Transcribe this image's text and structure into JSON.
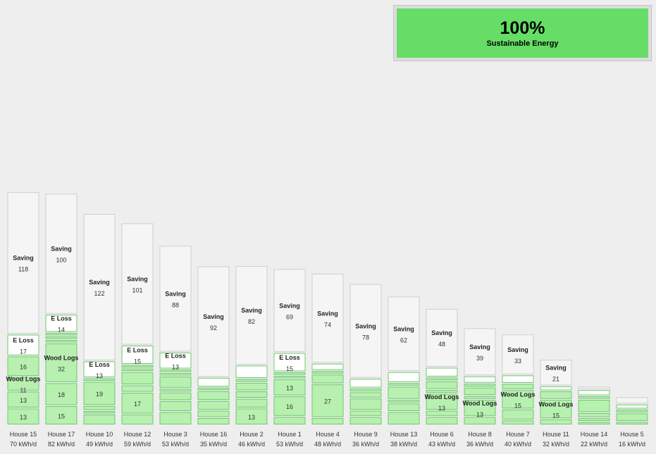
{
  "summary": {
    "value": "100%",
    "label": "Sustainable Energy",
    "color": "#66dd66"
  },
  "colors": {
    "saving": "#f5f5f5",
    "loss": "#ffffff",
    "source": "#b8f0b0",
    "source_border": "#6cc96c",
    "saving_border": "#cfcfcf",
    "background": "#eeeeee"
  },
  "chart_data": {
    "type": "bar",
    "stacked": true,
    "categories": [
      "House 15",
      "House 17",
      "House 10",
      "House 12",
      "House 3",
      "House 16",
      "House 2",
      "House 1",
      "House 4",
      "House 9",
      "House 13",
      "House 6",
      "House 8",
      "House 7",
      "House 11",
      "House 14",
      "House 5"
    ],
    "consumption_labels": [
      "70 kWh/d",
      "82 kWh/d",
      "49 kWh/d",
      "59 kWh/d",
      "53 kWh/d",
      "35 kWh/d",
      "46 kWh/d",
      "53 kWh/d",
      "48 kWh/d",
      "36 kWh/d",
      "38 kWh/d",
      "43 kWh/d",
      "36 kWh/d",
      "40 kWh/d",
      "32 kWh/d",
      "22 kWh/d",
      "16 kWh/d"
    ],
    "houses": [
      {
        "segments": [
          {
            "kind": "source",
            "value": 13
          },
          {
            "kind": "source",
            "value": 13
          },
          {
            "kind": "source",
            "label": "Wood Logs",
            "value": 11
          },
          {
            "kind": "source",
            "value": 16
          },
          {
            "kind": "loss",
            "label": "E Loss",
            "value": 17
          },
          {
            "kind": "saving",
            "label": "Saving",
            "value": 118
          }
        ]
      },
      {
        "segments": [
          {
            "kind": "source",
            "value": 15
          },
          {
            "kind": "source",
            "value": 18
          },
          {
            "kind": "source",
            "label": "Wood Logs",
            "value": 32
          },
          {
            "kind": "source",
            "value": 1
          },
          {
            "kind": "source",
            "value": 1
          },
          {
            "kind": "source",
            "value": 1
          },
          {
            "kind": "loss",
            "label": "E Loss",
            "value": 14
          },
          {
            "kind": "saving",
            "label": "Saving",
            "value": 100
          }
        ]
      },
      {
        "segments": [
          {
            "kind": "source",
            "value": 8
          },
          {
            "kind": "source",
            "value": 1
          },
          {
            "kind": "source",
            "value": 3
          },
          {
            "kind": "source",
            "value": 19
          },
          {
            "kind": "source",
            "value": 1
          },
          {
            "kind": "loss",
            "label": "E Loss",
            "value": 13
          },
          {
            "kind": "saving",
            "label": "Saving",
            "value": 122
          }
        ]
      },
      {
        "segments": [
          {
            "kind": "source",
            "value": 8
          },
          {
            "kind": "source",
            "value": 17
          },
          {
            "kind": "source",
            "value": 5
          },
          {
            "kind": "source",
            "value": 10
          },
          {
            "kind": "source",
            "value": 1
          },
          {
            "kind": "source",
            "value": 1
          },
          {
            "kind": "loss",
            "label": "E Loss",
            "value": 15
          },
          {
            "kind": "saving",
            "label": "Saving",
            "value": 101
          }
        ]
      },
      {
        "segments": [
          {
            "kind": "source",
            "value": 10
          },
          {
            "kind": "source",
            "value": 8
          },
          {
            "kind": "source",
            "value": 6
          },
          {
            "kind": "source",
            "value": 2
          },
          {
            "kind": "source",
            "value": 9
          },
          {
            "kind": "source",
            "value": 1
          },
          {
            "kind": "source",
            "value": 1
          },
          {
            "kind": "loss",
            "label": "E Loss",
            "value": 13
          },
          {
            "kind": "saving",
            "label": "Saving",
            "value": 88
          }
        ]
      },
      {
        "segments": [
          {
            "kind": "source",
            "value": 5
          },
          {
            "kind": "source",
            "value": 5
          },
          {
            "kind": "source",
            "value": 7
          },
          {
            "kind": "source",
            "value": 7
          },
          {
            "kind": "source",
            "value": 1
          },
          {
            "kind": "loss",
            "value": 7
          },
          {
            "kind": "saving",
            "label": "Saving",
            "value": 92
          }
        ]
      },
      {
        "segments": [
          {
            "kind": "source",
            "value": 13
          },
          {
            "kind": "source",
            "value": 7
          },
          {
            "kind": "source",
            "value": 5
          },
          {
            "kind": "source",
            "value": 6
          },
          {
            "kind": "source",
            "value": 2
          },
          {
            "kind": "loss",
            "value": 10
          },
          {
            "kind": "saving",
            "label": "Saving",
            "value": 82
          }
        ]
      },
      {
        "segments": [
          {
            "kind": "source",
            "value": 6
          },
          {
            "kind": "source",
            "value": 16
          },
          {
            "kind": "source",
            "value": 13
          },
          {
            "kind": "source",
            "value": 1
          },
          {
            "kind": "source",
            "value": 1
          },
          {
            "kind": "loss",
            "label": "E Loss",
            "value": 15
          },
          {
            "kind": "saving",
            "label": "Saving",
            "value": 69
          }
        ]
      },
      {
        "segments": [
          {
            "kind": "source",
            "value": 5
          },
          {
            "kind": "source",
            "value": 27
          },
          {
            "kind": "source",
            "value": 7
          },
          {
            "kind": "source",
            "value": 1
          },
          {
            "kind": "loss",
            "value": 5
          },
          {
            "kind": "saving",
            "label": "Saving",
            "value": 74
          }
        ]
      },
      {
        "segments": [
          {
            "kind": "source",
            "value": 6
          },
          {
            "kind": "source",
            "value": 4
          },
          {
            "kind": "source",
            "value": 9
          },
          {
            "kind": "source",
            "value": 4
          },
          {
            "kind": "source",
            "value": 2
          },
          {
            "kind": "loss",
            "value": 7
          },
          {
            "kind": "saving",
            "label": "Saving",
            "value": 78
          }
        ]
      },
      {
        "segments": [
          {
            "kind": "source",
            "value": 10
          },
          {
            "kind": "source",
            "value": 6
          },
          {
            "kind": "source",
            "value": 1
          },
          {
            "kind": "source",
            "value": 10
          },
          {
            "kind": "source",
            "value": 1
          },
          {
            "kind": "loss",
            "value": 8
          },
          {
            "kind": "saving",
            "label": "Saving",
            "value": 62
          }
        ]
      },
      {
        "segments": [
          {
            "kind": "source",
            "value": 6
          },
          {
            "kind": "source",
            "value": 4
          },
          {
            "kind": "source",
            "label": "Wood Logs",
            "value": 13
          },
          {
            "kind": "source",
            "value": 2
          },
          {
            "kind": "source",
            "value": 6
          },
          {
            "kind": "source",
            "value": 2
          },
          {
            "kind": "loss",
            "value": 7
          },
          {
            "kind": "saving",
            "label": "Saving",
            "value": 48
          }
        ]
      },
      {
        "segments": [
          {
            "kind": "source",
            "value": 6
          },
          {
            "kind": "source",
            "label": "Wood Logs",
            "value": 13
          },
          {
            "kind": "source",
            "value": 2
          },
          {
            "kind": "source",
            "value": 6
          },
          {
            "kind": "source",
            "value": 2
          },
          {
            "kind": "loss",
            "value": 5
          },
          {
            "kind": "saving",
            "label": "Saving",
            "value": 39
          }
        ]
      },
      {
        "segments": [
          {
            "kind": "source",
            "value": 3
          },
          {
            "kind": "source",
            "value": 8
          },
          {
            "kind": "source",
            "label": "Wood Logs",
            "value": 15
          },
          {
            "kind": "source",
            "value": 4
          },
          {
            "kind": "loss",
            "value": 6
          },
          {
            "kind": "saving",
            "label": "Saving",
            "value": 33
          }
        ]
      },
      {
        "segments": [
          {
            "kind": "source",
            "value": 4
          },
          {
            "kind": "source",
            "label": "Wood Logs",
            "value": 15
          },
          {
            "kind": "source",
            "value": 6
          },
          {
            "kind": "loss",
            "value": 3
          },
          {
            "kind": "saving",
            "label": "Saving",
            "value": 21
          }
        ]
      },
      {
        "segments": [
          {
            "kind": "source",
            "value": 1
          },
          {
            "kind": "source",
            "value": 2
          },
          {
            "kind": "source",
            "value": 3
          },
          {
            "kind": "source",
            "value": 10
          },
          {
            "kind": "source",
            "value": 1
          },
          {
            "kind": "loss",
            "value": 4
          },
          {
            "kind": "saving",
            "value": 1
          }
        ]
      },
      {
        "segments": [
          {
            "kind": "source",
            "value": 1
          },
          {
            "kind": "source",
            "value": 6
          },
          {
            "kind": "source",
            "value": 2
          },
          {
            "kind": "loss",
            "value": 3
          },
          {
            "kind": "saving",
            "value": 5
          }
        ]
      }
    ]
  }
}
